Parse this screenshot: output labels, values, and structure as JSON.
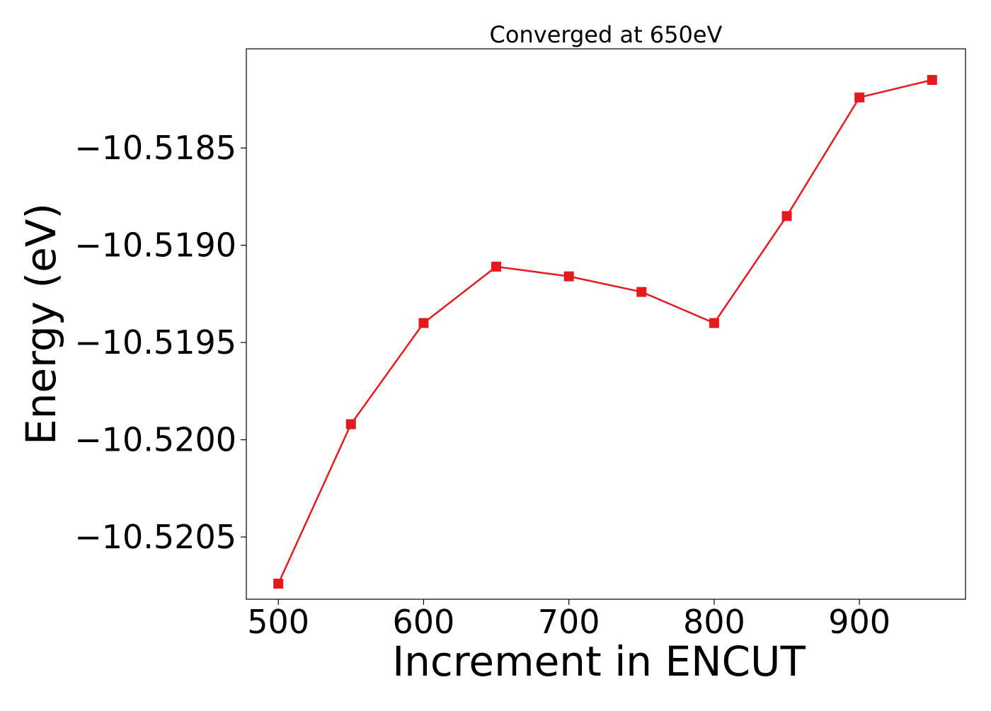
{
  "chart_data": {
    "type": "line",
    "title": "Converged at 650eV",
    "xlabel": "Increment in ENCUT",
    "ylabel": "Energy (eV)",
    "x": [
      500,
      550,
      600,
      650,
      700,
      750,
      800,
      850,
      900,
      950
    ],
    "series": [
      {
        "values": [
          -10.52074,
          -10.51992,
          -10.5194,
          -10.51911,
          -10.51916,
          -10.51924,
          -10.5194,
          -10.51885,
          -10.51824,
          -10.51815
        ],
        "color": "#e41a1c",
        "marker": "square"
      }
    ],
    "xlim": [
      478,
      973
    ],
    "ylim": [
      -10.52082,
      -10.51799
    ],
    "xticks": [
      500,
      600,
      700,
      800,
      900
    ],
    "xtick_labels": [
      "500",
      "600",
      "700",
      "800",
      "900"
    ],
    "yticks": [
      -10.5205,
      -10.52,
      -10.5195,
      -10.519,
      -10.5185
    ],
    "ytick_labels": [
      "−10.5205",
      "−10.5200",
      "−10.5195",
      "−10.5190",
      "−10.5185"
    ],
    "grid": false,
    "legend": "none"
  }
}
